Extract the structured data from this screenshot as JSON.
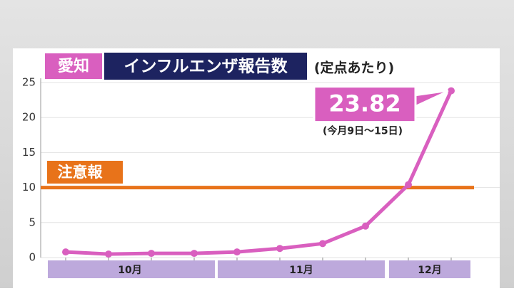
{
  "chart_data": {
    "type": "line",
    "title_tag": "愛知",
    "title": "インフルエンザ報告数",
    "subtitle": "(定点あたり)",
    "categories": [
      null,
      null,
      null,
      null,
      null,
      null,
      null,
      null,
      null,
      null
    ],
    "x_groups": [
      {
        "label": "10月",
        "span": 4
      },
      {
        "label": "11月",
        "span": 4
      },
      {
        "label": "12月",
        "span": 2
      }
    ],
    "series": [
      {
        "name": null,
        "color": "#d95fbf",
        "values": [
          0.8,
          0.5,
          0.6,
          0.6,
          0.8,
          1.3,
          2.0,
          4.5,
          10.4,
          23.82
        ],
        "value_labels": [
          null,
          null,
          null,
          null,
          null,
          null,
          null,
          null,
          null,
          "23.82"
        ]
      }
    ],
    "callout_note": "(今月9日～15日)",
    "threshold": {
      "label": "注意報",
      "value": 10,
      "color": "#e8731a"
    },
    "ylim": [
      0,
      25
    ],
    "yticks": [
      0,
      5,
      10,
      15,
      20,
      25
    ],
    "grid": true
  }
}
